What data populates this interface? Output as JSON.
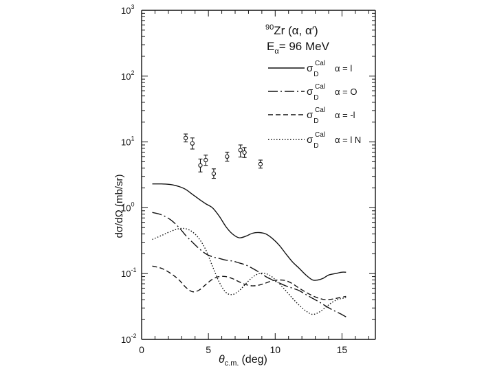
{
  "chart_data": {
    "type": "line",
    "title_nucleus_mass": "90",
    "title_reaction": "Zr (α, α′)",
    "title_energy_symbol": "E",
    "title_energy_sub": "α",
    "title_energy_value": "= 96  MeV",
    "xlabel_symbol": "θ",
    "xlabel_sub": "c.m.",
    "xlabel_unit": "(deg)",
    "ylabel": "dσ/dΩ  (mb/sr)",
    "xlim": [
      0,
      17.5
    ],
    "ylim": [
      0.01,
      1000
    ],
    "yscale": "log",
    "x_ticks": [
      0,
      5,
      10,
      15
    ],
    "x_tick_labels": [
      "0",
      "5",
      "10",
      "15"
    ],
    "y_ticks": [
      0.01,
      0.1,
      1,
      10,
      100,
      1000
    ],
    "y_tick_labels": [
      {
        "base": "10",
        "exp": "-2"
      },
      {
        "base": "10",
        "exp": "-1"
      },
      {
        "base": "10",
        "exp": "0"
      },
      {
        "base": "10",
        "exp": "1"
      },
      {
        "base": "10",
        "exp": "2"
      },
      {
        "base": "10",
        "exp": "3"
      }
    ],
    "series": [
      {
        "name": "σ_D^Cal α=1",
        "legend_symbol": "σ",
        "legend_sub": "D",
        "legend_sup": "Cal",
        "legend_text": "α = l",
        "dash": "solid",
        "x": [
          0.8,
          1.5,
          2.2,
          2.8,
          3.3,
          3.8,
          4.3,
          4.8,
          5.3,
          5.8,
          6.3,
          6.8,
          7.3,
          7.8,
          8.3,
          8.8,
          9.3,
          9.8,
          10.3,
          10.8,
          11.3,
          11.8,
          12.3,
          12.8,
          13.2,
          13.6,
          14.0,
          14.5,
          15.0,
          15.3
        ],
        "y": [
          2.3,
          2.3,
          2.25,
          2.1,
          1.9,
          1.6,
          1.35,
          1.15,
          1.0,
          0.75,
          0.52,
          0.4,
          0.35,
          0.37,
          0.41,
          0.42,
          0.4,
          0.34,
          0.27,
          0.2,
          0.15,
          0.12,
          0.095,
          0.08,
          0.08,
          0.085,
          0.095,
          0.1,
          0.105,
          0.105
        ]
      },
      {
        "name": "σ_D^Cal α=0",
        "legend_symbol": "σ",
        "legend_sub": "D",
        "legend_sup": "Cal",
        "legend_text": "α = O",
        "dash": "dashdot",
        "x": [
          0.8,
          1.5,
          2.2,
          2.8,
          3.3,
          3.8,
          4.3,
          4.8,
          5.3,
          5.8,
          6.3,
          6.8,
          7.3,
          7.8,
          8.3,
          8.8,
          9.3,
          9.8,
          10.3,
          10.8,
          11.3,
          11.8,
          12.3,
          12.8,
          13.3,
          13.8,
          14.3,
          14.8,
          15.3
        ],
        "y": [
          0.85,
          0.78,
          0.65,
          0.5,
          0.38,
          0.3,
          0.24,
          0.2,
          0.18,
          0.17,
          0.16,
          0.155,
          0.145,
          0.135,
          0.12,
          0.105,
          0.09,
          0.08,
          0.072,
          0.065,
          0.06,
          0.055,
          0.048,
          0.042,
          0.037,
          0.032,
          0.028,
          0.025,
          0.022
        ]
      },
      {
        "name": "σ_D^Cal α=-1",
        "legend_symbol": "σ",
        "legend_sub": "D",
        "legend_sup": "Cal",
        "legend_text": "α = -l",
        "dash": "dashed",
        "x": [
          0.8,
          1.5,
          2.2,
          2.8,
          3.3,
          3.8,
          4.3,
          4.8,
          5.3,
          5.8,
          6.3,
          6.8,
          7.3,
          7.8,
          8.3,
          8.8,
          9.3,
          9.8,
          10.3,
          10.8,
          11.3,
          11.8,
          12.3,
          12.8,
          13.3,
          13.8,
          14.3,
          14.8,
          15.3
        ],
        "y": [
          0.13,
          0.12,
          0.1,
          0.08,
          0.062,
          0.053,
          0.056,
          0.068,
          0.082,
          0.09,
          0.09,
          0.084,
          0.075,
          0.068,
          0.065,
          0.067,
          0.072,
          0.078,
          0.08,
          0.078,
          0.07,
          0.06,
          0.052,
          0.046,
          0.042,
          0.04,
          0.041,
          0.043,
          0.045
        ]
      },
      {
        "name": "σ_D^Cal α=1 N",
        "legend_symbol": "σ",
        "legend_sub": "D",
        "legend_sup": "Cal",
        "legend_text": "α = l  N",
        "dash": "dotted",
        "x": [
          0.8,
          1.5,
          2.2,
          2.8,
          3.3,
          3.8,
          4.3,
          4.8,
          5.3,
          5.8,
          6.3,
          6.8,
          7.3,
          7.8,
          8.3,
          8.8,
          9.3,
          9.8,
          10.3,
          10.8,
          11.3,
          11.8,
          12.3,
          12.8,
          13.3,
          13.8,
          14.3,
          14.8,
          15.3
        ],
        "y": [
          0.33,
          0.38,
          0.44,
          0.48,
          0.48,
          0.43,
          0.34,
          0.23,
          0.13,
          0.075,
          0.052,
          0.048,
          0.055,
          0.07,
          0.088,
          0.1,
          0.1,
          0.088,
          0.07,
          0.055,
          0.042,
          0.033,
          0.027,
          0.024,
          0.026,
          0.031,
          0.037,
          0.041,
          0.043
        ]
      }
    ],
    "experimental_data": {
      "name": "data points",
      "x": [
        3.3,
        3.8,
        4.4,
        4.8,
        5.4,
        6.4,
        7.4,
        7.7,
        8.9
      ],
      "y": [
        11.5,
        9.5,
        4.4,
        5.3,
        3.3,
        6.0,
        7.5,
        6.9,
        4.6
      ],
      "err_low": [
        10.0,
        7.8,
        3.5,
        4.4,
        2.8,
        5.1,
        5.9,
        5.8,
        4.0
      ],
      "err_high": [
        13.2,
        11.5,
        5.5,
        6.3,
        3.9,
        7.0,
        9.0,
        8.2,
        5.3
      ]
    }
  }
}
